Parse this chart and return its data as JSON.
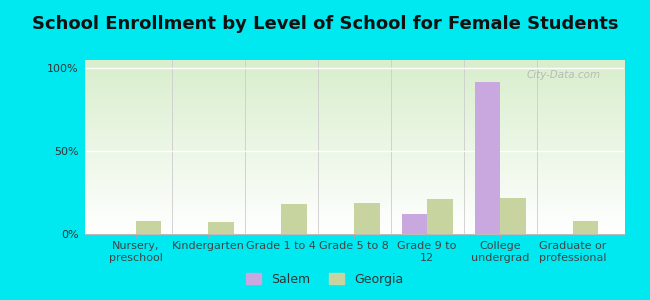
{
  "title": "School Enrollment by Level of School for Female Students",
  "categories": [
    "Nursery,\npreschool",
    "Kindergarten",
    "Grade 1 to 4",
    "Grade 5 to 8",
    "Grade 9 to\n12",
    "College\nundergrad",
    "Graduate or\nprofessional"
  ],
  "salem_values": [
    0,
    0,
    0,
    0,
    12,
    92,
    0
  ],
  "georgia_values": [
    8,
    7,
    18,
    19,
    21,
    22,
    8
  ],
  "salem_color": "#c9a8e0",
  "georgia_color": "#c8d4a0",
  "background_outer": "#00e8f0",
  "ylabel_ticks": [
    "0%",
    "50%",
    "100%"
  ],
  "yticks": [
    0,
    50,
    100
  ],
  "ylim": [
    0,
    105
  ],
  "bar_width": 0.35,
  "legend_labels": [
    "Salem",
    "Georgia"
  ],
  "watermark": "City-Data.com",
  "title_fontsize": 13,
  "tick_fontsize": 8.0,
  "plot_bg_top": "#ffffff",
  "plot_bg_bottom": "#d8eecc"
}
